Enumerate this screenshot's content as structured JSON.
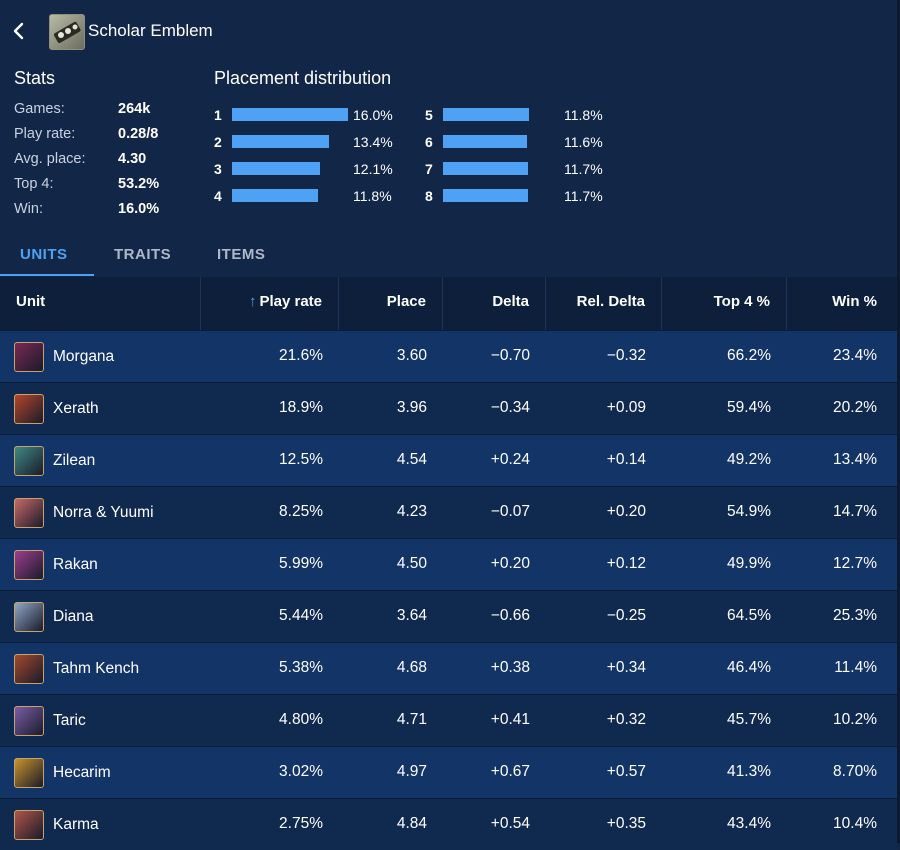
{
  "header": {
    "title": "Scholar Emblem"
  },
  "stats": {
    "title": "Stats",
    "rows": [
      {
        "label": "Games:",
        "value": "264k"
      },
      {
        "label": "Play rate:",
        "value": "0.28/8"
      },
      {
        "label": "Avg. place:",
        "value": "4.30"
      },
      {
        "label": "Top 4:",
        "value": "53.2%"
      },
      {
        "label": "Win:",
        "value": "16.0%"
      }
    ]
  },
  "distribution": {
    "title": "Placement distribution",
    "rows": [
      {
        "place": "1",
        "pct": "16.0%",
        "value": 16.0
      },
      {
        "place": "2",
        "pct": "13.4%",
        "value": 13.4
      },
      {
        "place": "3",
        "pct": "12.1%",
        "value": 12.1
      },
      {
        "place": "4",
        "pct": "11.8%",
        "value": 11.8
      },
      {
        "place": "5",
        "pct": "11.8%",
        "value": 11.8
      },
      {
        "place": "6",
        "pct": "11.6%",
        "value": 11.6
      },
      {
        "place": "7",
        "pct": "11.7%",
        "value": 11.7
      },
      {
        "place": "8",
        "pct": "11.7%",
        "value": 11.7
      }
    ]
  },
  "tabs": [
    "UNITS",
    "TRAITS",
    "ITEMS"
  ],
  "table": {
    "columns": [
      "Unit",
      "Play rate",
      "Place",
      "Delta",
      "Rel. Delta",
      "Top 4 %",
      "Win %"
    ],
    "rows": [
      {
        "unit": "Morgana",
        "play_rate": "21.6%",
        "place": "3.60",
        "delta": "−0.70",
        "rel_delta": "−0.32",
        "top4": "66.2%",
        "win": "23.4%",
        "color": "#7a2a56"
      },
      {
        "unit": "Xerath",
        "play_rate": "18.9%",
        "place": "3.96",
        "delta": "−0.34",
        "rel_delta": "+0.09",
        "top4": "59.4%",
        "win": "20.2%",
        "color": "#b5472a"
      },
      {
        "unit": "Zilean",
        "play_rate": "12.5%",
        "place": "4.54",
        "delta": "+0.24",
        "rel_delta": "+0.14",
        "top4": "49.2%",
        "win": "13.4%",
        "color": "#3f8a86"
      },
      {
        "unit": "Norra & Yuumi",
        "play_rate": "8.25%",
        "place": "4.23",
        "delta": "−0.07",
        "rel_delta": "+0.20",
        "top4": "54.9%",
        "win": "14.7%",
        "color": "#c76a6a"
      },
      {
        "unit": "Rakan",
        "play_rate": "5.99%",
        "place": "4.50",
        "delta": "+0.20",
        "rel_delta": "+0.12",
        "top4": "49.9%",
        "win": "12.7%",
        "color": "#9c3f8e"
      },
      {
        "unit": "Diana",
        "play_rate": "5.44%",
        "place": "3.64",
        "delta": "−0.66",
        "rel_delta": "−0.25",
        "top4": "64.5%",
        "win": "25.3%",
        "color": "#8fa7c6"
      },
      {
        "unit": "Tahm Kench",
        "play_rate": "5.38%",
        "place": "4.68",
        "delta": "+0.38",
        "rel_delta": "+0.34",
        "top4": "46.4%",
        "win": "11.4%",
        "color": "#a34a2e"
      },
      {
        "unit": "Taric",
        "play_rate": "4.80%",
        "place": "4.71",
        "delta": "+0.41",
        "rel_delta": "+0.32",
        "top4": "45.7%",
        "win": "10.2%",
        "color": "#7a5fa8"
      },
      {
        "unit": "Hecarim",
        "play_rate": "3.02%",
        "place": "4.97",
        "delta": "+0.67",
        "rel_delta": "+0.57",
        "top4": "41.3%",
        "win": "8.70%",
        "color": "#c9932e"
      },
      {
        "unit": "Karma",
        "play_rate": "2.75%",
        "place": "4.84",
        "delta": "+0.54",
        "rel_delta": "+0.35",
        "top4": "43.4%",
        "win": "10.4%",
        "color": "#b0564a"
      }
    ]
  },
  "colors": {
    "accent": "#4ea1f3",
    "bg": "#122747",
    "row_odd": "#123466",
    "row_even": "#10294f",
    "header": "#0d1f3a"
  },
  "icons": {
    "back": "chevron-left-icon",
    "item": "scholar-emblem-icon",
    "sort": "arrow-up-icon"
  }
}
